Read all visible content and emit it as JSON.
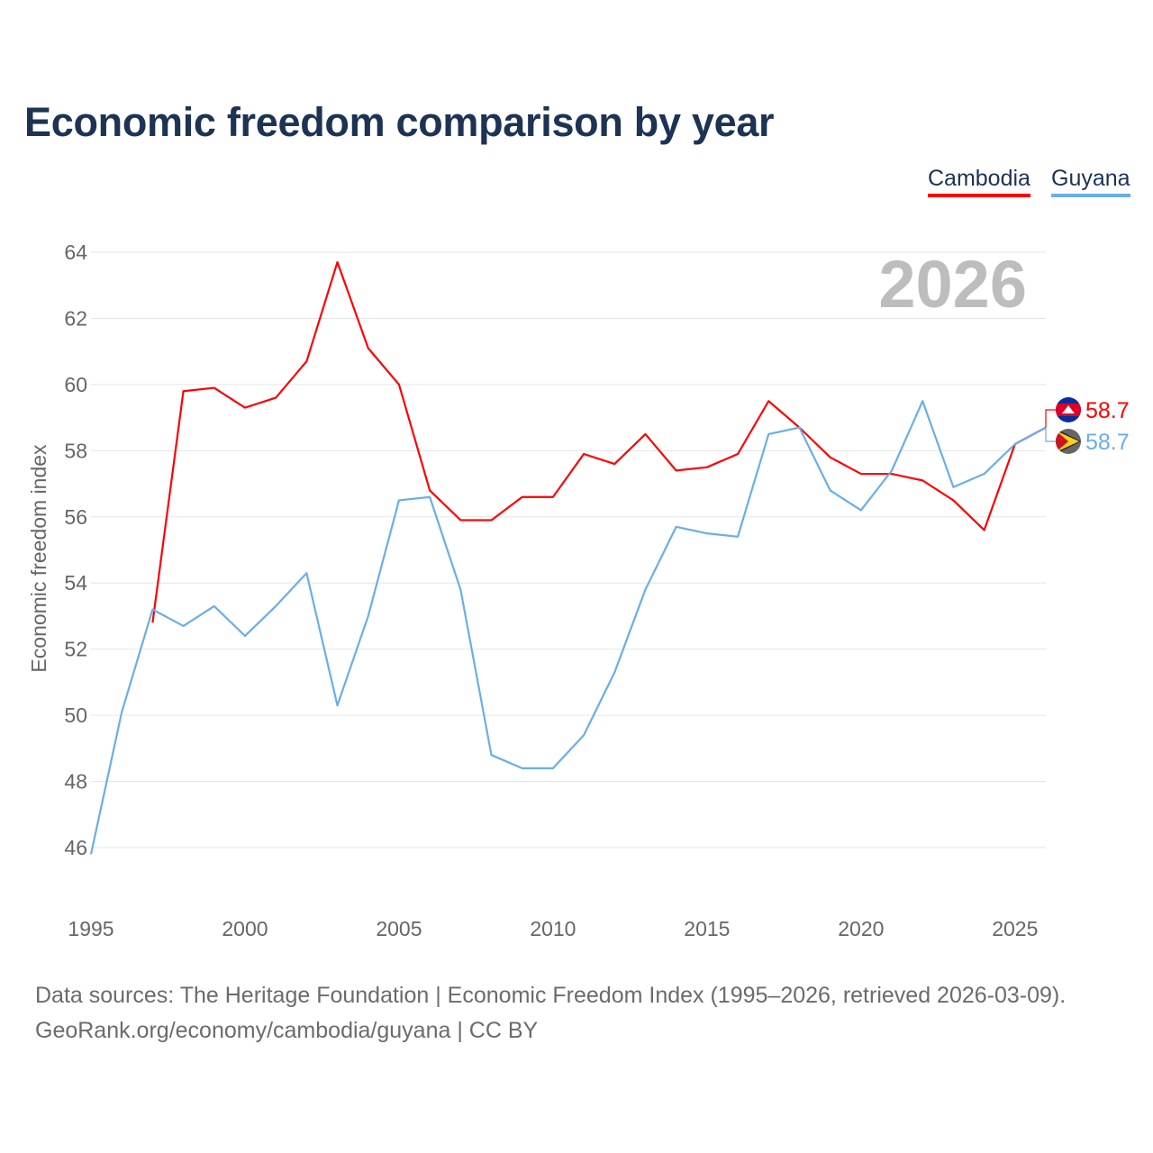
{
  "title": "Economic freedom comparison by year",
  "footer": {
    "line1": "Data sources: The Heritage Foundation | Economic Freedom Index (1995–2026, retrieved 2026-03-09).",
    "line2": "GeoRank.org/economy/cambodia/guyana | CC BY"
  },
  "chart_data": {
    "type": "line",
    "title": "Economic freedom comparison by year",
    "ylabel": "Economic freedom index",
    "xlabel": "",
    "ylim": [
      46,
      64
    ],
    "xlim": [
      1995,
      2026
    ],
    "yticks": [
      "46",
      "48",
      "50",
      "52",
      "54",
      "56",
      "58",
      "60",
      "62",
      "64"
    ],
    "xticks": [
      "1995",
      "2000",
      "2005",
      "2010",
      "2015",
      "2020",
      "2025"
    ],
    "grid": true,
    "legend_position": "top-right",
    "year_label": "2026",
    "series": [
      {
        "name": "Cambodia",
        "color": "#ff0000",
        "end_label": "58.7",
        "flag": "cambodia-flag",
        "x": [
          1997,
          1998,
          1999,
          2000,
          2001,
          2002,
          2003,
          2004,
          2005,
          2006,
          2007,
          2008,
          2009,
          2010,
          2011,
          2012,
          2013,
          2014,
          2015,
          2016,
          2017,
          2018,
          2019,
          2020,
          2021,
          2022,
          2023,
          2024,
          2025,
          2026
        ],
        "values": [
          52.8,
          59.8,
          59.9,
          59.3,
          59.6,
          60.7,
          63.7,
          61.1,
          60.0,
          56.8,
          55.9,
          55.9,
          56.6,
          56.6,
          57.9,
          57.6,
          58.5,
          57.4,
          57.5,
          57.9,
          59.5,
          58.7,
          57.8,
          57.3,
          57.3,
          57.1,
          56.5,
          55.6,
          58.2,
          58.7
        ]
      },
      {
        "name": "Guyana",
        "color": "#6aaee8",
        "end_label": "58.7",
        "flag": "guyana-flag",
        "x": [
          1995,
          1996,
          1997,
          1998,
          1999,
          2000,
          2001,
          2002,
          2003,
          2004,
          2005,
          2006,
          2007,
          2008,
          2009,
          2010,
          2011,
          2012,
          2013,
          2014,
          2015,
          2016,
          2017,
          2018,
          2019,
          2020,
          2021,
          2022,
          2023,
          2024,
          2025,
          2026
        ],
        "values": [
          45.8,
          50.1,
          53.2,
          52.7,
          53.3,
          52.4,
          53.3,
          54.3,
          50.3,
          53.0,
          56.5,
          56.6,
          53.8,
          48.8,
          48.4,
          48.4,
          49.4,
          51.3,
          53.8,
          55.7,
          55.5,
          55.4,
          58.5,
          58.7,
          56.8,
          56.2,
          57.4,
          59.5,
          56.9,
          57.3,
          58.2,
          58.7
        ]
      }
    ]
  }
}
